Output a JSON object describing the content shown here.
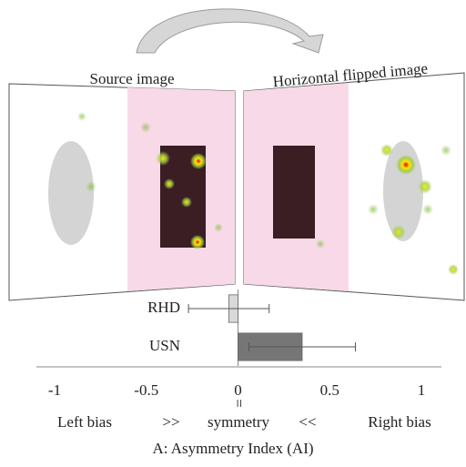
{
  "chart_data": {
    "type": "hbar",
    "title": "A: Asymmetry Index (AI)",
    "panel_labels": [
      "Source image",
      "Horizontal flipped image"
    ],
    "categories": [
      "RHD",
      "USN"
    ],
    "values": [
      -0.05,
      0.35
    ],
    "errors": [
      0.22,
      0.29
    ],
    "colors": [
      "#d9d9d9",
      "#767676"
    ],
    "xlim": [
      -1,
      1
    ],
    "xticks": [
      -1,
      -0.5,
      0,
      0.5,
      1
    ],
    "grid": false,
    "annotations": [
      "Left bias",
      ">>",
      "symmetry",
      "<<",
      "Right bias"
    ],
    "equal_sign": "="
  }
}
